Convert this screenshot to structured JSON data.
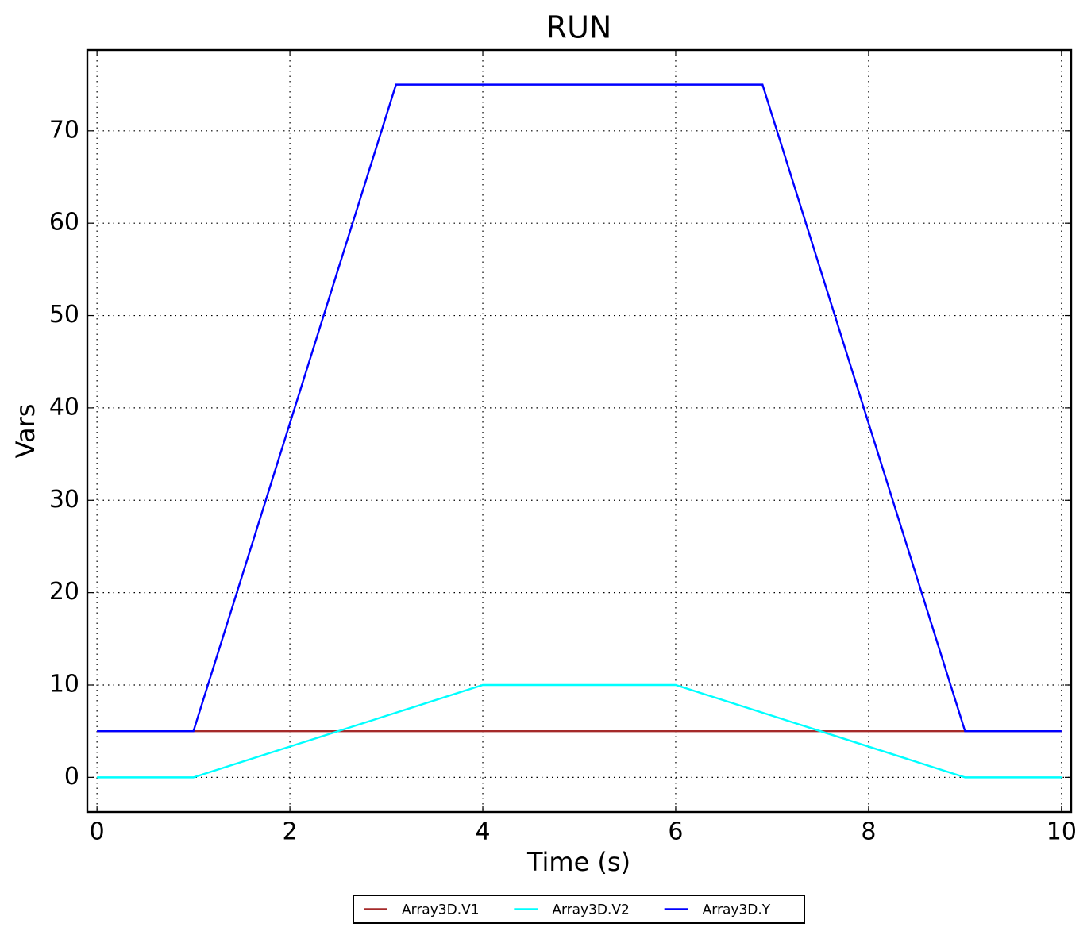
{
  "chart_data": {
    "type": "line",
    "title": "RUN",
    "x_label": "Time (s)",
    "y_label": "Vars",
    "x": [
      0,
      1,
      3.1,
      4,
      6,
      6.9,
      9,
      10
    ],
    "series": [
      {
        "name": "Array3D.V1",
        "color": "#a52a2a",
        "values": [
          5,
          5,
          5,
          5,
          5,
          5,
          5,
          5
        ]
      },
      {
        "name": "Array3D.V2",
        "color": "#00ffff",
        "values": [
          0,
          0,
          7,
          10,
          10,
          7,
          0,
          0
        ]
      },
      {
        "name": "Array3D.Y",
        "color": "#0000ff",
        "values": [
          5,
          5,
          75,
          75,
          75,
          75,
          5,
          5
        ]
      }
    ],
    "xlim": [
      -0.1,
      10.1
    ],
    "ylim": [
      -3.75,
      78.75
    ],
    "xticks": [
      0,
      2,
      4,
      6,
      8,
      10
    ],
    "yticks": [
      0,
      10,
      20,
      30,
      40,
      50,
      60,
      70
    ],
    "grid": true,
    "legend": "bottom"
  }
}
